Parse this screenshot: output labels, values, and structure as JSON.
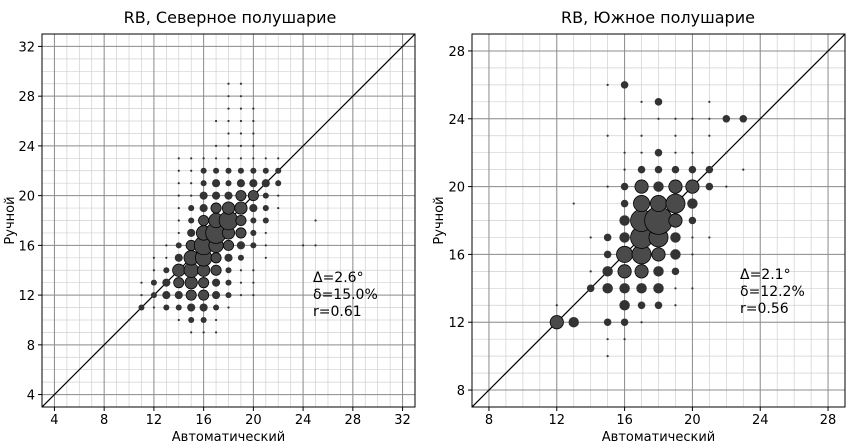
{
  "chart_data": [
    {
      "type": "scatter",
      "title": "RB, Северное полушарие",
      "xlabel": "Автоматический",
      "ylabel": "Ручной",
      "xlim": [
        3,
        33
      ],
      "ylim": [
        3,
        33
      ],
      "xticks": [
        4,
        8,
        12,
        16,
        20,
        24,
        28,
        32
      ],
      "yticks": [
        4,
        8,
        12,
        16,
        20,
        24,
        28,
        32
      ],
      "grid": true,
      "reference_line": "y=x",
      "annotations": [
        "Δ=2.6°",
        "δ=15.0%",
        "r=0.61"
      ],
      "points": [
        [
          10,
          10,
          1
        ],
        [
          11,
          11,
          2
        ],
        [
          11,
          12,
          1
        ],
        [
          11,
          13,
          1
        ],
        [
          12,
          11,
          1
        ],
        [
          12,
          12,
          2
        ],
        [
          12,
          13,
          2
        ],
        [
          12,
          14,
          1
        ],
        [
          12,
          15,
          1
        ],
        [
          13,
          11,
          2
        ],
        [
          13,
          12,
          3
        ],
        [
          13,
          13,
          3
        ],
        [
          13,
          14,
          2
        ],
        [
          13,
          15,
          1
        ],
        [
          13,
          16,
          1
        ],
        [
          14,
          10,
          1
        ],
        [
          14,
          11,
          2
        ],
        [
          14,
          12,
          3
        ],
        [
          14,
          13,
          4
        ],
        [
          14,
          14,
          5
        ],
        [
          14,
          15,
          3
        ],
        [
          14,
          16,
          2
        ],
        [
          14,
          17,
          1
        ],
        [
          14,
          18,
          1
        ],
        [
          14,
          19,
          1
        ],
        [
          14,
          20,
          1
        ],
        [
          14,
          21,
          1
        ],
        [
          14,
          22,
          1
        ],
        [
          14,
          23,
          1
        ],
        [
          15,
          9,
          1
        ],
        [
          15,
          10,
          2
        ],
        [
          15,
          11,
          3
        ],
        [
          15,
          12,
          4
        ],
        [
          15,
          13,
          5
        ],
        [
          15,
          14,
          6
        ],
        [
          15,
          15,
          6
        ],
        [
          15,
          16,
          4
        ],
        [
          15,
          17,
          3
        ],
        [
          15,
          18,
          2
        ],
        [
          15,
          19,
          2
        ],
        [
          15,
          20,
          1
        ],
        [
          15,
          21,
          1
        ],
        [
          15,
          22,
          1
        ],
        [
          15,
          23,
          1
        ],
        [
          16,
          9,
          1
        ],
        [
          16,
          10,
          2
        ],
        [
          16,
          11,
          3
        ],
        [
          16,
          12,
          4
        ],
        [
          16,
          13,
          4
        ],
        [
          16,
          14,
          5
        ],
        [
          16,
          15,
          7
        ],
        [
          16,
          16,
          8
        ],
        [
          16,
          17,
          6
        ],
        [
          16,
          18,
          4
        ],
        [
          16,
          19,
          3
        ],
        [
          16,
          20,
          3
        ],
        [
          16,
          21,
          2
        ],
        [
          16,
          22,
          2
        ],
        [
          16,
          23,
          1
        ],
        [
          17,
          9,
          1
        ],
        [
          17,
          10,
          1
        ],
        [
          17,
          11,
          2
        ],
        [
          17,
          12,
          3
        ],
        [
          17,
          13,
          3
        ],
        [
          17,
          14,
          4
        ],
        [
          17,
          15,
          4
        ],
        [
          17,
          16,
          6
        ],
        [
          17,
          17,
          9
        ],
        [
          17,
          18,
          6
        ],
        [
          17,
          19,
          4
        ],
        [
          17,
          20,
          3
        ],
        [
          17,
          21,
          3
        ],
        [
          17,
          22,
          2
        ],
        [
          17,
          23,
          1
        ],
        [
          17,
          24,
          1
        ],
        [
          17,
          26,
          1
        ],
        [
          18,
          11,
          1
        ],
        [
          18,
          12,
          2
        ],
        [
          18,
          13,
          2
        ],
        [
          18,
          14,
          2
        ],
        [
          18,
          15,
          3
        ],
        [
          18,
          16,
          4
        ],
        [
          18,
          17,
          5
        ],
        [
          18,
          18,
          8
        ],
        [
          18,
          19,
          5
        ],
        [
          18,
          20,
          3
        ],
        [
          18,
          21,
          2
        ],
        [
          18,
          22,
          2
        ],
        [
          18,
          23,
          1
        ],
        [
          18,
          24,
          1
        ],
        [
          18,
          25,
          1
        ],
        [
          18,
          26,
          1
        ],
        [
          18,
          27,
          1
        ],
        [
          18,
          28,
          1
        ],
        [
          18,
          29,
          1
        ],
        [
          19,
          12,
          1
        ],
        [
          19,
          13,
          1
        ],
        [
          19,
          14,
          1
        ],
        [
          19,
          15,
          2
        ],
        [
          19,
          16,
          3
        ],
        [
          19,
          17,
          4
        ],
        [
          19,
          18,
          4
        ],
        [
          19,
          19,
          5
        ],
        [
          19,
          20,
          4
        ],
        [
          19,
          21,
          3
        ],
        [
          19,
          22,
          2
        ],
        [
          19,
          23,
          1
        ],
        [
          19,
          24,
          1
        ],
        [
          19,
          25,
          1
        ],
        [
          19,
          26,
          1
        ],
        [
          19,
          27,
          1
        ],
        [
          19,
          28,
          1
        ],
        [
          19,
          29,
          1
        ],
        [
          20,
          12,
          1
        ],
        [
          20,
          13,
          1
        ],
        [
          20,
          14,
          1
        ],
        [
          20,
          16,
          2
        ],
        [
          20,
          17,
          2
        ],
        [
          20,
          18,
          2
        ],
        [
          20,
          19,
          3
        ],
        [
          20,
          20,
          4
        ],
        [
          20,
          21,
          3
        ],
        [
          20,
          22,
          2
        ],
        [
          20,
          23,
          1
        ],
        [
          20,
          24,
          1
        ],
        [
          20,
          25,
          1
        ],
        [
          20,
          26,
          1
        ],
        [
          20,
          27,
          1
        ],
        [
          21,
          15,
          1
        ],
        [
          21,
          16,
          1
        ],
        [
          21,
          17,
          1
        ],
        [
          21,
          18,
          2
        ],
        [
          21,
          19,
          2
        ],
        [
          21,
          20,
          2
        ],
        [
          21,
          21,
          3
        ],
        [
          21,
          22,
          2
        ],
        [
          21,
          23,
          1
        ],
        [
          22,
          19,
          1
        ],
        [
          22,
          20,
          1
        ],
        [
          22,
          21,
          2
        ],
        [
          22,
          22,
          2
        ],
        [
          22,
          23,
          1
        ],
        [
          24,
          16,
          1
        ],
        [
          25,
          16,
          1
        ],
        [
          25,
          18,
          1
        ]
      ]
    },
    {
      "type": "scatter",
      "title": "RB, Южное полушарие",
      "xlabel": "Автоматический",
      "ylabel": "Ручной",
      "xlim": [
        7,
        29
      ],
      "ylim": [
        7,
        29
      ],
      "xticks": [
        8,
        12,
        16,
        20,
        24,
        28
      ],
      "yticks": [
        8,
        12,
        16,
        20,
        24,
        28
      ],
      "grid": true,
      "reference_line": "y=x",
      "annotations": [
        "Δ=2.1°",
        "δ=12.2%",
        "r=0.56"
      ],
      "points": [
        [
          12,
          12,
          4
        ],
        [
          12,
          13,
          1
        ],
        [
          13,
          12,
          3
        ],
        [
          13,
          19,
          1
        ],
        [
          14,
          14,
          2
        ],
        [
          14,
          15,
          1
        ],
        [
          14,
          17,
          1
        ],
        [
          15,
          10,
          1
        ],
        [
          15,
          11,
          1
        ],
        [
          15,
          12,
          2
        ],
        [
          15,
          14,
          3
        ],
        [
          15,
          15,
          3
        ],
        [
          15,
          16,
          2
        ],
        [
          15,
          17,
          2
        ],
        [
          15,
          20,
          1
        ],
        [
          15,
          23,
          1
        ],
        [
          15,
          26,
          1
        ],
        [
          16,
          11,
          1
        ],
        [
          16,
          12,
          2
        ],
        [
          16,
          13,
          3
        ],
        [
          16,
          14,
          3
        ],
        [
          16,
          15,
          4
        ],
        [
          16,
          16,
          5
        ],
        [
          16,
          17,
          3
        ],
        [
          16,
          18,
          3
        ],
        [
          16,
          19,
          2
        ],
        [
          16,
          20,
          2
        ],
        [
          16,
          21,
          1
        ],
        [
          16,
          22,
          1
        ],
        [
          16,
          24,
          1
        ],
        [
          16,
          26,
          2
        ],
        [
          17,
          12,
          1
        ],
        [
          17,
          13,
          2
        ],
        [
          17,
          14,
          3
        ],
        [
          17,
          15,
          4
        ],
        [
          17,
          16,
          6
        ],
        [
          17,
          17,
          7
        ],
        [
          17,
          18,
          7
        ],
        [
          17,
          19,
          5
        ],
        [
          17,
          20,
          4
        ],
        [
          17,
          21,
          2
        ],
        [
          17,
          22,
          1
        ],
        [
          17,
          23,
          1
        ],
        [
          17,
          25,
          1
        ],
        [
          18,
          13,
          2
        ],
        [
          18,
          14,
          3
        ],
        [
          18,
          15,
          3
        ],
        [
          18,
          16,
          4
        ],
        [
          18,
          17,
          6
        ],
        [
          18,
          18,
          9
        ],
        [
          18,
          19,
          5
        ],
        [
          18,
          20,
          3
        ],
        [
          18,
          21,
          2
        ],
        [
          18,
          22,
          2
        ],
        [
          18,
          24,
          1
        ],
        [
          18,
          25,
          2
        ],
        [
          19,
          13,
          1
        ],
        [
          19,
          14,
          1
        ],
        [
          19,
          15,
          2
        ],
        [
          19,
          16,
          3
        ],
        [
          19,
          17,
          3
        ],
        [
          19,
          18,
          4
        ],
        [
          19,
          19,
          6
        ],
        [
          19,
          20,
          4
        ],
        [
          19,
          21,
          2
        ],
        [
          19,
          22,
          1
        ],
        [
          19,
          23,
          1
        ],
        [
          19,
          24,
          1
        ],
        [
          20,
          14,
          1
        ],
        [
          20,
          16,
          1
        ],
        [
          20,
          17,
          1
        ],
        [
          20,
          18,
          2
        ],
        [
          20,
          19,
          3
        ],
        [
          20,
          20,
          4
        ],
        [
          20,
          21,
          2
        ],
        [
          20,
          22,
          1
        ],
        [
          20,
          24,
          1
        ],
        [
          21,
          17,
          1
        ],
        [
          21,
          20,
          2
        ],
        [
          21,
          21,
          2
        ],
        [
          21,
          23,
          1
        ],
        [
          21,
          24,
          1
        ],
        [
          21,
          25,
          1
        ],
        [
          22,
          20,
          1
        ],
        [
          22,
          22,
          1
        ],
        [
          22,
          24,
          2
        ],
        [
          23,
          21,
          1
        ],
        [
          23,
          24,
          2
        ]
      ]
    }
  ]
}
